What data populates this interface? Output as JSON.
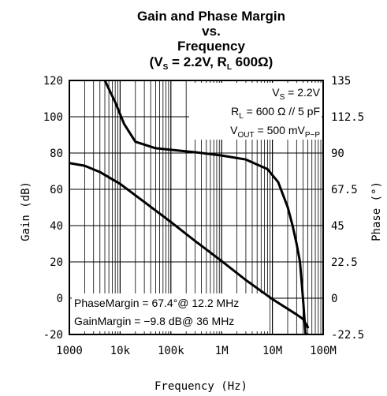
{
  "chart_data": {
    "type": "line",
    "title": [
      "Gain and Phase Margin",
      "vs.",
      "Frequency"
    ],
    "subtitle": {
      "prefix": "(V",
      "sub1": "S",
      "mid": " = 2.2V, R",
      "sub2": "L",
      "suffix": " 600Ω)"
    },
    "xlabel": "Frequency (Hz)",
    "ylabel_left": "Gain (dB)",
    "ylabel_right": "Phase (°)",
    "x_scale": "log",
    "xlim": [
      1000,
      100000000
    ],
    "ylim_left": [
      -20,
      120
    ],
    "ylim_right": [
      -22.5,
      135
    ],
    "x_ticks": [
      {
        "value": 1000,
        "label": "1000"
      },
      {
        "value": 10000,
        "label": "10k"
      },
      {
        "value": 100000,
        "label": "100k"
      },
      {
        "value": 1000000,
        "label": "1M"
      },
      {
        "value": 10000000,
        "label": "10M"
      },
      {
        "value": 100000000,
        "label": "100M"
      }
    ],
    "y_ticks_left": [
      "120",
      "100",
      "80",
      "60",
      "40",
      "20",
      "0",
      "-20"
    ],
    "y_ticks_right": [
      "135",
      "112.5",
      "90",
      "67.5",
      "45",
      "22.5",
      "0",
      "-22.5"
    ],
    "grid": true,
    "series": [
      {
        "axis": "left",
        "x": [
          1000,
          2000,
          4000,
          10000,
          30000,
          100000,
          300000,
          1000000,
          3000000,
          10000000,
          30000000,
          40000000,
          50000000
        ],
        "y": [
          74.5,
          73,
          69.5,
          63,
          53,
          42,
          31.5,
          20.5,
          10,
          -0.5,
          -9,
          -11.5,
          -16
        ]
      },
      {
        "axis": "right",
        "x": [
          5000,
          8000,
          12000,
          20000,
          50000,
          100000,
          300000,
          1000000,
          3000000,
          8000000,
          13000000,
          20000000,
          25000000,
          30000000,
          35000000,
          40000000,
          45000000,
          50000000
        ],
        "y": [
          135,
          121.5,
          108,
          97,
          93,
          92,
          90.5,
          88.5,
          86,
          80,
          72,
          56.5,
          45,
          33.75,
          22.5,
          0,
          -22.5,
          -22.5
        ]
      }
    ],
    "annotations": {
      "top_right": [
        {
          "prefix": "V",
          "sub": "S",
          "suffix": " = 2.2V"
        },
        {
          "prefix": "R",
          "sub": "L",
          "suffix": " = 600 Ω // 5 pF"
        },
        {
          "prefix": "V",
          "sub": "OUT",
          "suffix": " = 500 mV",
          "sub2": "P−P"
        }
      ],
      "bottom_left": [
        "PhaseMargin = 67.4°@ 12.2 MHz",
        "GainMargin = −9.8 dB@ 36 MHz"
      ]
    },
    "colors": {
      "line": "#000000",
      "grid": "#000000",
      "background": "#ffffff"
    }
  }
}
